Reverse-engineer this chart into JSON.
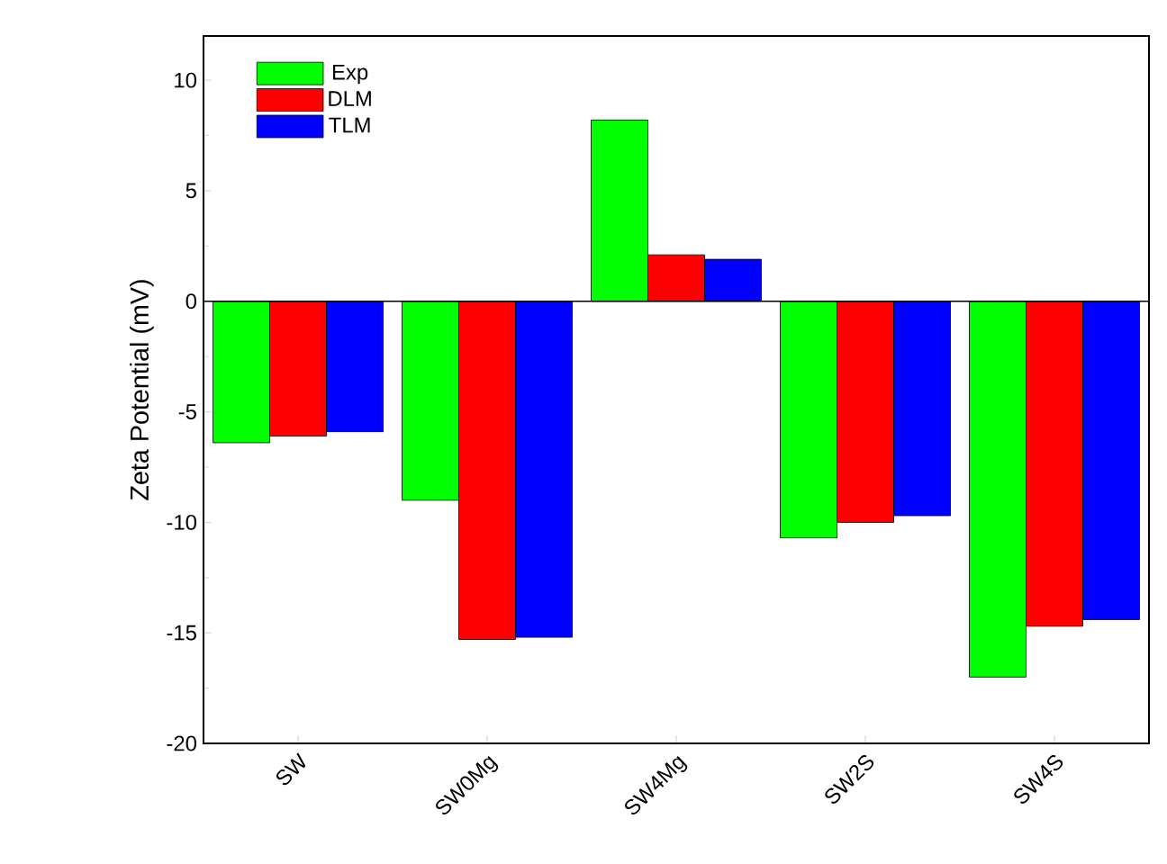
{
  "chart_data": {
    "type": "bar",
    "ylabel": "Zeta Potential (mV)",
    "categories": [
      "SW",
      "SW0Mg",
      "SW4Mg",
      "SW2S",
      "SW4S"
    ],
    "series": [
      {
        "name": "Exp",
        "color": "#00ff00",
        "values": [
          -6.4,
          -9.0,
          8.2,
          -10.7,
          -17.0
        ]
      },
      {
        "name": "DLM",
        "color": "#ff0000",
        "values": [
          -6.1,
          -15.3,
          2.1,
          -10.0,
          -14.7
        ]
      },
      {
        "name": "TLM",
        "color": "#0000ff",
        "values": [
          -5.9,
          -15.2,
          1.9,
          -9.7,
          -14.4
        ]
      }
    ],
    "ylim": [
      -20,
      12
    ],
    "yticks": [
      -20,
      -15,
      -10,
      -5,
      0,
      5,
      10
    ],
    "grid": false,
    "legend": "top left",
    "ref_lines": [
      {
        "axis": "y",
        "value": 0,
        "color": "#000000"
      }
    ]
  }
}
